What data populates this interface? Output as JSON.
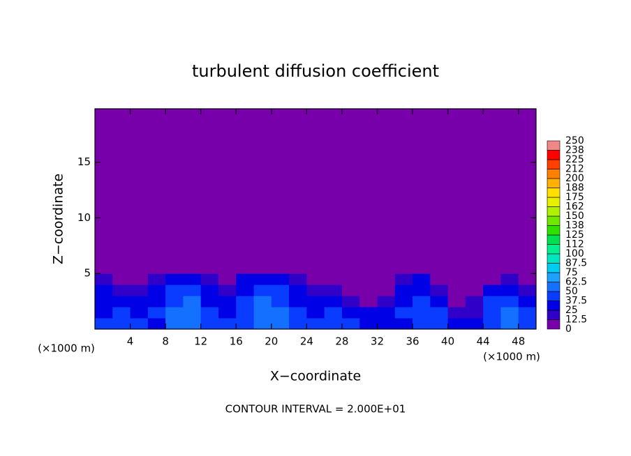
{
  "chart_data": {
    "type": "contour",
    "title": "turbulent diffusion coefficient",
    "xlabel": "X−coordinate",
    "ylabel": "Z−coordinate",
    "x_unit_labels": [
      "(×1000 m)",
      "(×1000 m)"
    ],
    "annotation": "CONTOUR INTERVAL = 2.000E+01",
    "xlim": [
      0,
      50
    ],
    "ylim": [
      0,
      19.8
    ],
    "xticks": [
      4,
      8,
      12,
      16,
      20,
      24,
      28,
      32,
      36,
      40,
      44,
      48
    ],
    "yticks": [
      5,
      10,
      15
    ],
    "x": [
      1,
      3,
      5,
      7,
      9,
      11,
      13,
      15,
      17,
      19,
      21,
      23,
      25,
      27,
      29,
      31,
      33,
      35,
      37,
      39,
      41,
      43,
      45,
      47,
      49
    ],
    "y": [
      0.5,
      1.5,
      2.5,
      3.5,
      4.5,
      5.5
    ],
    "z": [
      [
        40,
        45,
        40,
        35,
        55,
        60,
        45,
        40,
        45,
        50,
        55,
        45,
        40,
        45,
        40,
        35,
        30,
        35,
        40,
        45,
        35,
        30,
        45,
        50,
        45
      ],
      [
        35,
        40,
        35,
        40,
        50,
        55,
        40,
        35,
        40,
        55,
        50,
        40,
        35,
        40,
        30,
        25,
        25,
        40,
        45,
        40,
        20,
        20,
        45,
        50,
        40
      ],
      [
        30,
        35,
        30,
        35,
        45,
        50,
        35,
        30,
        40,
        50,
        45,
        35,
        30,
        30,
        15,
        10,
        15,
        35,
        40,
        30,
        10,
        15,
        40,
        45,
        35
      ],
      [
        25,
        20,
        15,
        30,
        40,
        45,
        30,
        20,
        35,
        45,
        40,
        30,
        20,
        15,
        5,
        0,
        5,
        30,
        35,
        20,
        5,
        10,
        30,
        35,
        20
      ],
      [
        15,
        10,
        5,
        20,
        30,
        35,
        15,
        10,
        25,
        30,
        25,
        15,
        10,
        5,
        0,
        0,
        0,
        20,
        25,
        10,
        0,
        0,
        10,
        15,
        5
      ],
      [
        0,
        0,
        0,
        5,
        10,
        10,
        5,
        0,
        5,
        10,
        5,
        0,
        0,
        0,
        0,
        0,
        0,
        5,
        5,
        0,
        0,
        0,
        0,
        0,
        0
      ]
    ],
    "colorbar": {
      "ticks": [
        0,
        12.5,
        25,
        37.5,
        50,
        62.5,
        75,
        87.5,
        100,
        {
          "value": 112.5,
          "label": "112"
        },
        125,
        {
          "value": 137.5,
          "label": "138"
        },
        150,
        {
          "value": 162.5,
          "label": "162"
        },
        175,
        {
          "value": 187.5,
          "label": "188"
        },
        200,
        {
          "value": 212.5,
          "label": "212"
        },
        225,
        {
          "value": 237.5,
          "label": "238"
        },
        250
      ],
      "colors": [
        "#7800aa",
        "#3000c8",
        "#0000e6",
        "#0a3cff",
        "#1470ff",
        "#1ea0ff",
        "#00ccf0",
        "#00e6c0",
        "#00f090",
        "#00e050",
        "#30e000",
        "#70e800",
        "#b0f000",
        "#e8f000",
        "#ffe000",
        "#ffb000",
        "#ff8000",
        "#ff4000",
        "#ff0000",
        "#f08888"
      ]
    }
  }
}
